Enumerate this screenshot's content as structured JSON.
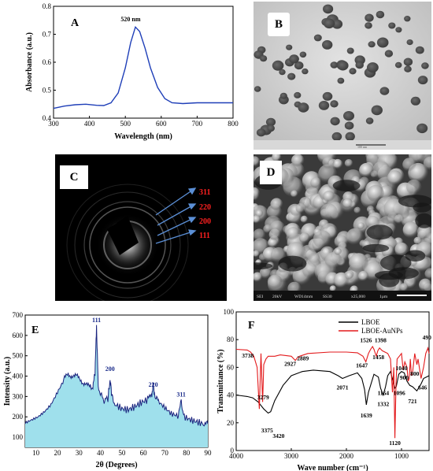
{
  "panels": {
    "A": {
      "letter": "A"
    },
    "B": {
      "letter": "B"
    },
    "C": {
      "letter": "C"
    },
    "D": {
      "letter": "D"
    },
    "E": {
      "letter": "E"
    },
    "F": {
      "letter": "F"
    }
  },
  "saed_labels": [
    "311",
    "220",
    "200",
    "111"
  ],
  "sem_bar": {
    "items": [
      "SEI",
      "20kV",
      "WD14mm",
      "SS30",
      "x25,000",
      "1µm"
    ]
  },
  "tem_bar": {
    "scale_text": "100 nm"
  },
  "chart_data": [
    {
      "id": "A",
      "type": "line",
      "xlabel": "Wavelength (nm)",
      "ylabel": "Absorbance (a.u.)",
      "xlim": [
        300,
        800
      ],
      "ylim": [
        0.4,
        0.8
      ],
      "xticks": [
        300,
        400,
        500,
        600,
        700,
        800
      ],
      "yticks": [
        0.4,
        0.5,
        0.6,
        0.7,
        0.8
      ],
      "annotation": "520 nm",
      "annotation_x": 528,
      "color": "#1f3fb8",
      "x": [
        300,
        330,
        360,
        390,
        420,
        440,
        460,
        480,
        500,
        515,
        528,
        540,
        555,
        570,
        590,
        610,
        630,
        660,
        700,
        750,
        800
      ],
      "y": [
        0.435,
        0.443,
        0.448,
        0.45,
        0.446,
        0.445,
        0.455,
        0.49,
        0.58,
        0.67,
        0.726,
        0.71,
        0.65,
        0.58,
        0.51,
        0.47,
        0.455,
        0.452,
        0.455,
        0.455,
        0.455
      ]
    },
    {
      "id": "E",
      "type": "area",
      "xlabel": "2θ (Degrees)",
      "ylabel": "Intensity (a.u.)",
      "xlim": [
        5,
        90
      ],
      "ylim": [
        50,
        700
      ],
      "xticks": [
        10,
        20,
        30,
        40,
        50,
        60,
        70,
        80,
        90
      ],
      "yticks": [
        100,
        200,
        300,
        400,
        500,
        600,
        700
      ],
      "fill_color": "#9fe0ec",
      "line_color": "#1a237e",
      "peak_labels": [
        {
          "text": "111",
          "x": 38.2,
          "y": 665
        },
        {
          "text": "200",
          "x": 44.5,
          "y": 425
        },
        {
          "text": "220",
          "x": 64.6,
          "y": 348
        },
        {
          "text": "311",
          "x": 77.6,
          "y": 300
        }
      ],
      "x": [
        5,
        8,
        11,
        14,
        17,
        20,
        23,
        25,
        27,
        29,
        31,
        33,
        35,
        36.5,
        37.5,
        38.2,
        39,
        40.5,
        42,
        43.5,
        44.5,
        45.5,
        47,
        50,
        53,
        56,
        59,
        62,
        63.8,
        64.6,
        65.4,
        67,
        70,
        73,
        76,
        77.6,
        79,
        82,
        85,
        88,
        90
      ],
      "y": [
        170,
        185,
        200,
        225,
        260,
        320,
        380,
        410,
        405,
        395,
        380,
        365,
        340,
        350,
        420,
        645,
        350,
        300,
        280,
        290,
        380,
        295,
        260,
        240,
        235,
        250,
        270,
        285,
        300,
        360,
        295,
        275,
        245,
        215,
        205,
        270,
        200,
        185,
        175,
        165,
        165
      ]
    },
    {
      "id": "F",
      "type": "line",
      "xlabel": "Wave number (cm⁻¹)",
      "ylabel": "Transmittance (%)",
      "xlim": [
        4000,
        500
      ],
      "ylim": [
        0,
        100
      ],
      "xticks": [
        4000,
        3000,
        2000,
        1000
      ],
      "yticks": [
        0,
        20,
        40,
        60,
        80,
        100
      ],
      "series": [
        {
          "name": "LBOE",
          "color": "#000000",
          "x": [
            4000,
            3900,
            3800,
            3700,
            3600,
            3500,
            3420,
            3375,
            3300,
            3150,
            3000,
            2800,
            2600,
            2300,
            2150,
            2071,
            1950,
            1800,
            1720,
            1670,
            1639,
            1600,
            1500,
            1420,
            1380,
            1332,
            1290,
            1250,
            1200,
            1120,
            1096,
            1050,
            1000,
            950,
            900,
            850,
            800,
            721,
            646,
            600,
            500
          ],
          "y": [
            40,
            39.5,
            39,
            38,
            35,
            30,
            27,
            28,
            36,
            47,
            54,
            57,
            58,
            57,
            54,
            52,
            54,
            56,
            52,
            44,
            33,
            42,
            55,
            53,
            45,
            40,
            46,
            54,
            57,
            45,
            46,
            55,
            57,
            56,
            50,
            47,
            46,
            43,
            48,
            52,
            54
          ]
        },
        {
          "name": "LBOE-AuNPs",
          "color": "#e31a1c",
          "x": [
            4000,
            3800,
            3738,
            3680,
            3620,
            3580,
            3550,
            3520,
            3500,
            3460,
            3420,
            3300,
            3200,
            3000,
            2927,
            2889,
            2850,
            2700,
            2300,
            2000,
            1800,
            1700,
            1647,
            1600,
            1560,
            1526,
            1500,
            1458,
            1430,
            1398,
            1350,
            1250,
            1200,
            1164,
            1140,
            1120,
            1100,
            1080,
            1040,
            1000,
            970,
            940,
            900,
            880,
            860,
            840,
            820,
            800,
            760,
            721,
            700,
            646,
            600,
            560,
            520,
            500
          ],
          "y": [
            73,
            72.5,
            71,
            68,
            60,
            30,
            70,
            35,
            62,
            66,
            68,
            68,
            69,
            68,
            65,
            67,
            68,
            70,
            71,
            71,
            70.5,
            68,
            64,
            70,
            73,
            75,
            73,
            68,
            72,
            74,
            72,
            70,
            66,
            42,
            60,
            9,
            48,
            66,
            68,
            70,
            58,
            64,
            60,
            50,
            52,
            66,
            54,
            56,
            70,
            62,
            66,
            52,
            60,
            70,
            74,
            70
          ]
        }
      ],
      "annotations": [
        {
          "text": "3738",
          "x": 3790,
          "y": 67
        },
        {
          "text": "3279",
          "x": 3510,
          "y": 37
        },
        {
          "text": "3375",
          "x": 3440,
          "y": 13
        },
        {
          "text": "3420",
          "x": 3230,
          "y": 9
        },
        {
          "text": "2927",
          "x": 3020,
          "y": 61
        },
        {
          "text": "2889",
          "x": 2790,
          "y": 65
        },
        {
          "text": "2071",
          "x": 2071,
          "y": 44
        },
        {
          "text": "1526",
          "x": 1645,
          "y": 78
        },
        {
          "text": "1398",
          "x": 1380,
          "y": 78
        },
        {
          "text": "1647",
          "x": 1720,
          "y": 60
        },
        {
          "text": "1458",
          "x": 1420,
          "y": 66
        },
        {
          "text": "1639",
          "x": 1639,
          "y": 24
        },
        {
          "text": "1332",
          "x": 1332,
          "y": 32
        },
        {
          "text": "1164",
          "x": 1330,
          "y": 40
        },
        {
          "text": "1096",
          "x": 1040,
          "y": 40
        },
        {
          "text": "1120",
          "x": 1120,
          "y": 4
        },
        {
          "text": "1040",
          "x": 1000,
          "y": 58
        },
        {
          "text": "900",
          "x": 950,
          "y": 51
        },
        {
          "text": "800",
          "x": 760,
          "y": 54
        },
        {
          "text": "721",
          "x": 800,
          "y": 34
        },
        {
          "text": "646",
          "x": 620,
          "y": 44
        },
        {
          "text": "490",
          "x": 540,
          "y": 80
        }
      ]
    }
  ]
}
